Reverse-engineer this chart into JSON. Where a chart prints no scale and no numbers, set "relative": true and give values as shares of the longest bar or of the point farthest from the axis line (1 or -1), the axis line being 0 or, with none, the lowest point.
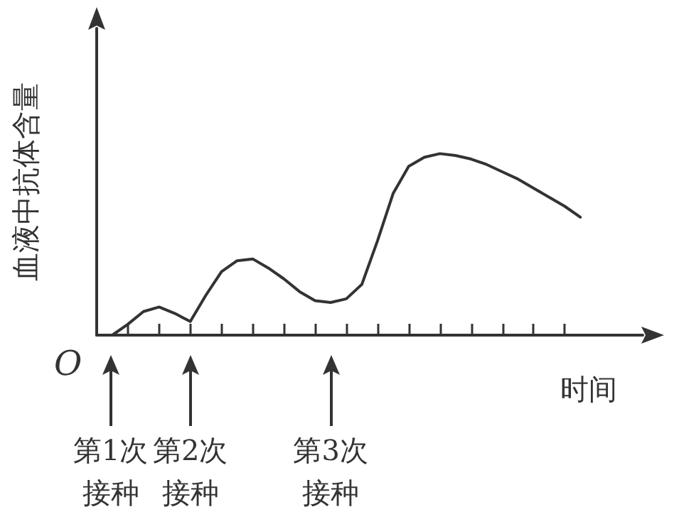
{
  "chart_data": {
    "type": "line",
    "relative": true,
    "xlabel": "时间",
    "ylabel": "血液中抗体含量",
    "color": "#333333",
    "marker": "none",
    "categories": [
      null,
      null,
      null,
      null,
      null,
      null,
      null,
      null,
      null,
      null,
      null,
      null,
      null,
      null,
      null,
      null,
      null,
      null,
      null,
      null,
      null,
      null,
      null,
      null,
      null,
      null,
      null,
      null,
      null,
      null,
      null,
      null,
      null,
      null,
      null,
      null
    ],
    "values": [
      null,
      0,
      0.06,
      0.13,
      0.155,
      0.12,
      0.075,
      0.22,
      0.35,
      0.41,
      0.42,
      0.37,
      0.31,
      0.24,
      0.19,
      0.18,
      0.2,
      0.28,
      0.52,
      0.78,
      0.93,
      0.98,
      1.0,
      0.99,
      0.97,
      0.94,
      0.9,
      0.86,
      0.81,
      0.76,
      0.71,
      0.65,
      null,
      null,
      null,
      null
    ],
    "annotations": [
      "O",
      "第1次接种",
      "第2次接种",
      "第3次接种"
    ]
  }
}
